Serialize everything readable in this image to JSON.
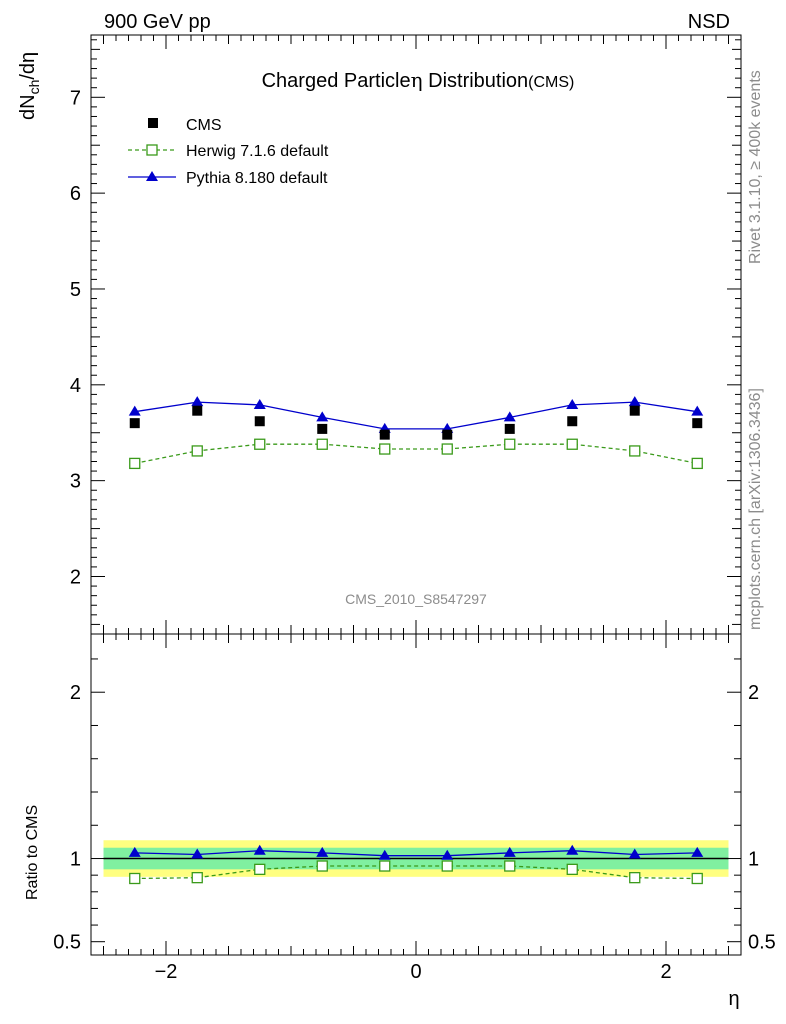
{
  "header": {
    "left": "900 GeV pp",
    "right": "NSD"
  },
  "side_labels": {
    "rivet": "Rivet 3.1.10, ≥ 400k events",
    "mcplots": "mcplots.cern.ch [arXiv:1306.3436]"
  },
  "chart_data": [
    {
      "type": "scatter",
      "title_main": "Charged Particle",
      "title_sym": "η",
      "title_rest": " Distribution",
      "title_tag": "(CMS)",
      "watermark": "CMS_2010_S8547297",
      "ylabel_main": "dN",
      "ylabel_sub": "ch",
      "ylabel_rest": "/dη",
      "ylim": [
        1.4,
        7.65
      ],
      "xlim": [
        -2.6,
        2.6
      ],
      "yticks": [
        2,
        3,
        4,
        5,
        6,
        7
      ],
      "x": [
        -2.25,
        -1.75,
        -1.25,
        -0.75,
        -0.25,
        0.25,
        0.75,
        1.25,
        1.75,
        2.25
      ],
      "series": [
        {
          "name": "CMS",
          "style": "square-filled",
          "color": "#000000",
          "values": [
            3.6,
            3.73,
            3.62,
            3.54,
            3.48,
            3.48,
            3.54,
            3.62,
            3.73,
            3.6
          ]
        },
        {
          "name": "Herwig 7.1.6 default",
          "style": "square-open-dashed",
          "color": "#3a9a1a",
          "values": [
            3.18,
            3.31,
            3.38,
            3.38,
            3.33,
            3.33,
            3.38,
            3.38,
            3.31,
            3.18
          ]
        },
        {
          "name": "Pythia 8.180 default",
          "style": "triangle-solid",
          "color": "#0000cc",
          "values": [
            3.72,
            3.82,
            3.79,
            3.66,
            3.54,
            3.54,
            3.66,
            3.79,
            3.82,
            3.72
          ]
        }
      ]
    },
    {
      "type": "scatter",
      "ylabel": "Ratio to CMS",
      "xlabel": "η",
      "ylim": [
        0.42,
        2.35
      ],
      "xlim": [
        -2.6,
        2.6
      ],
      "yticks": [
        0.5,
        1,
        2
      ],
      "ytick_labels": [
        "0.5",
        "1",
        "2"
      ],
      "xticks": [
        -2,
        0,
        2
      ],
      "xtick_labels": [
        "−2",
        "0",
        "2"
      ],
      "bands": {
        "yellow": 0.11,
        "green": 0.065,
        "yellow_color": "#ffff80",
        "green_color": "#80f0a0"
      },
      "x": [
        -2.25,
        -1.75,
        -1.25,
        -0.75,
        -0.25,
        0.25,
        0.75,
        1.25,
        1.75,
        2.25
      ],
      "series": [
        {
          "name": "Herwig 7.1.6 default",
          "style": "square-open-dashed",
          "color": "#3a9a1a",
          "values": [
            0.88,
            0.885,
            0.935,
            0.955,
            0.955,
            0.955,
            0.955,
            0.935,
            0.885,
            0.88
          ]
        },
        {
          "name": "Pythia 8.180 default",
          "style": "triangle-solid",
          "color": "#0000cc",
          "values": [
            1.034,
            1.024,
            1.047,
            1.034,
            1.017,
            1.017,
            1.034,
            1.047,
            1.024,
            1.034
          ]
        }
      ]
    }
  ]
}
